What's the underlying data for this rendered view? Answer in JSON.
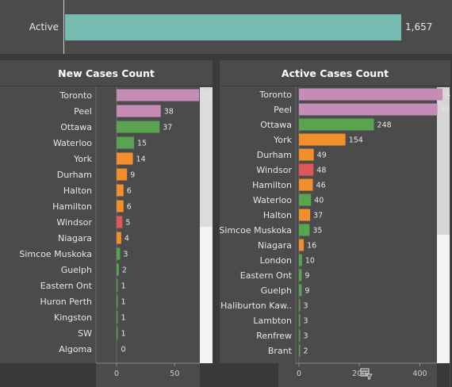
{
  "top": {
    "label": "Active",
    "value": 1657,
    "value_text": "1,657",
    "color": "#76bcb3"
  },
  "colors": {
    "pink": "#c58db5",
    "green": "#5aa351",
    "orange": "#f28e2b",
    "red": "#e15759"
  },
  "chart_data": [
    {
      "type": "bar",
      "orientation": "horizontal",
      "title": "New Cases Count",
      "categories": [
        "Toronto",
        "Peel",
        "Ottawa",
        "Waterloo",
        "York",
        "Durham",
        "Halton",
        "Hamilton",
        "Windsor",
        "Niagara",
        "Simcoe Muskoka",
        "Guelph",
        "Eastern Ont",
        "Huron Perth",
        "Kingston",
        "SW",
        "Algoma"
      ],
      "values": [
        71,
        38,
        37,
        15,
        14,
        9,
        6,
        6,
        5,
        4,
        3,
        2,
        1,
        1,
        1,
        1,
        0
      ],
      "colors": [
        "pink",
        "pink",
        "green",
        "green",
        "orange",
        "orange",
        "orange",
        "orange",
        "red",
        "orange",
        "green",
        "green",
        "green",
        "green",
        "green",
        "green",
        "green"
      ],
      "xlim": [
        0,
        75
      ],
      "xticks": [
        0,
        50
      ],
      "grid": false
    },
    {
      "type": "bar",
      "orientation": "horizontal",
      "title": "Active Cases Count",
      "categories": [
        "Toronto",
        "Peel",
        "Ottawa",
        "York",
        "Durham",
        "Windsor",
        "Hamilton",
        "Waterloo",
        "Halton",
        "Simcoe Muskoka",
        "Niagara",
        "London",
        "Eastern Ont",
        "Guelph",
        "Haliburton Kaw..",
        "Lambton",
        "Renfrew",
        "Brant"
      ],
      "values": [
        475,
        458,
        248,
        154,
        49,
        48,
        46,
        40,
        37,
        35,
        16,
        10,
        9,
        9,
        3,
        3,
        3,
        2
      ],
      "colors": [
        "pink",
        "pink",
        "green",
        "orange",
        "orange",
        "red",
        "orange",
        "green",
        "orange",
        "green",
        "orange",
        "green",
        "green",
        "green",
        "green",
        "green",
        "green",
        "green"
      ],
      "xlim": [
        0,
        480
      ],
      "xticks": [
        0,
        200,
        400
      ],
      "grid": false
    }
  ],
  "icons": {
    "filter": "filter-table-icon"
  }
}
